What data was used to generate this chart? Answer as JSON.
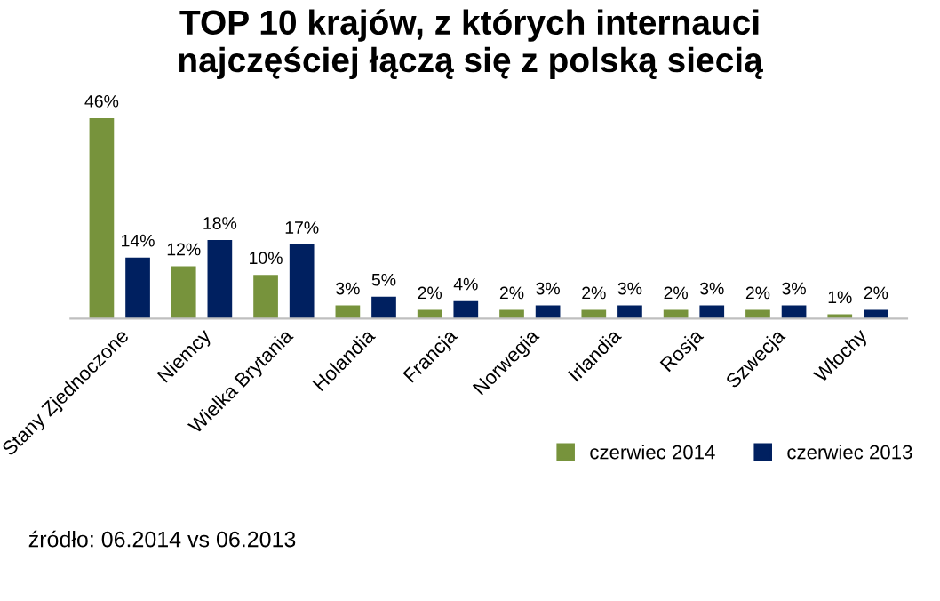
{
  "chart_data": {
    "type": "bar",
    "title": "TOP 10 krajów, z których internauci\nnajczęściej łączą się z polską siecią",
    "categories": [
      "Stany Zjednoczone",
      "Niemcy",
      "Wielka Brytania",
      "Holandia",
      "Francja",
      "Norwegia",
      "Irlandia",
      "Rosja",
      "Szwecja",
      "Włochy"
    ],
    "series": [
      {
        "name": "czerwiec 2014",
        "color": "#77933c",
        "values": [
          46,
          12,
          10,
          3,
          2,
          2,
          2,
          2,
          2,
          1
        ],
        "value_labels": [
          "46%",
          "12%",
          "10%",
          "3%",
          "2%",
          "2%",
          "2%",
          "2%",
          "2%",
          "1%"
        ]
      },
      {
        "name": "czerwiec 2013",
        "color": "#002060",
        "values": [
          14,
          18,
          17,
          5,
          4,
          3,
          3,
          3,
          3,
          2
        ],
        "value_labels": [
          "14%",
          "18%",
          "17%",
          "5%",
          "4%",
          "3%",
          "3%",
          "3%",
          "3%",
          "2%"
        ]
      }
    ],
    "legend": "bottom right",
    "annotations": [
      "źródło: 06.2014 vs 06.2013"
    ]
  }
}
